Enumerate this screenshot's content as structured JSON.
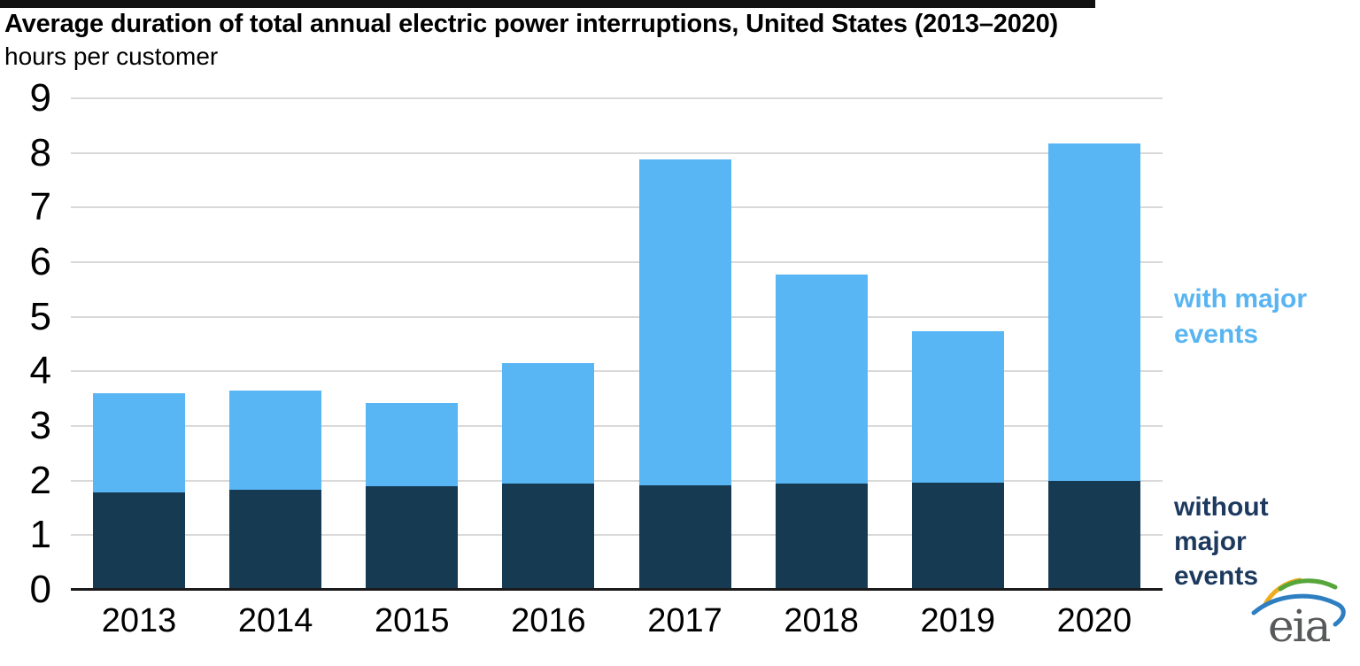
{
  "header": {
    "title": "Average duration of total annual electric power interruptions, United States (2013–2020)",
    "subtitle": "hours per customer"
  },
  "legend": {
    "with_major": {
      "label": "with major events",
      "color": "#58B5F2"
    },
    "without_major": {
      "label": "without major events",
      "color": "#1D3A5E"
    }
  },
  "logo": {
    "text": "eia"
  },
  "colors": {
    "bar_with_major": "#58B6F5",
    "bar_without_major": "#163A52",
    "gridline": "#D9D9D9",
    "axis_line": "#1A1A1A",
    "top_border": "#121212",
    "text": "#000000"
  },
  "chart_data": {
    "type": "bar",
    "stacked": true,
    "title": "Average duration of total annual electric power interruptions, United States (2013–2020)",
    "ylabel": "hours per customer",
    "categories": [
      "2013",
      "2014",
      "2015",
      "2016",
      "2017",
      "2018",
      "2019",
      "2020"
    ],
    "series": [
      {
        "name": "without major events",
        "color": "#163A52",
        "values": [
          1.78,
          1.84,
          1.9,
          1.95,
          1.91,
          1.95,
          1.97,
          1.99
        ]
      },
      {
        "name": "with major events",
        "color": "#58B6F5",
        "values": [
          1.82,
          1.81,
          1.52,
          2.2,
          5.97,
          3.82,
          2.77,
          6.19
        ]
      }
    ],
    "totals": [
      3.6,
      3.65,
      3.42,
      4.15,
      7.88,
      5.77,
      4.74,
      8.18
    ],
    "ylim": [
      0,
      9
    ],
    "yticks": [
      0,
      1,
      2,
      3,
      4,
      5,
      6,
      7,
      8,
      9
    ],
    "grid": "horizontal",
    "legend_position": "right"
  }
}
